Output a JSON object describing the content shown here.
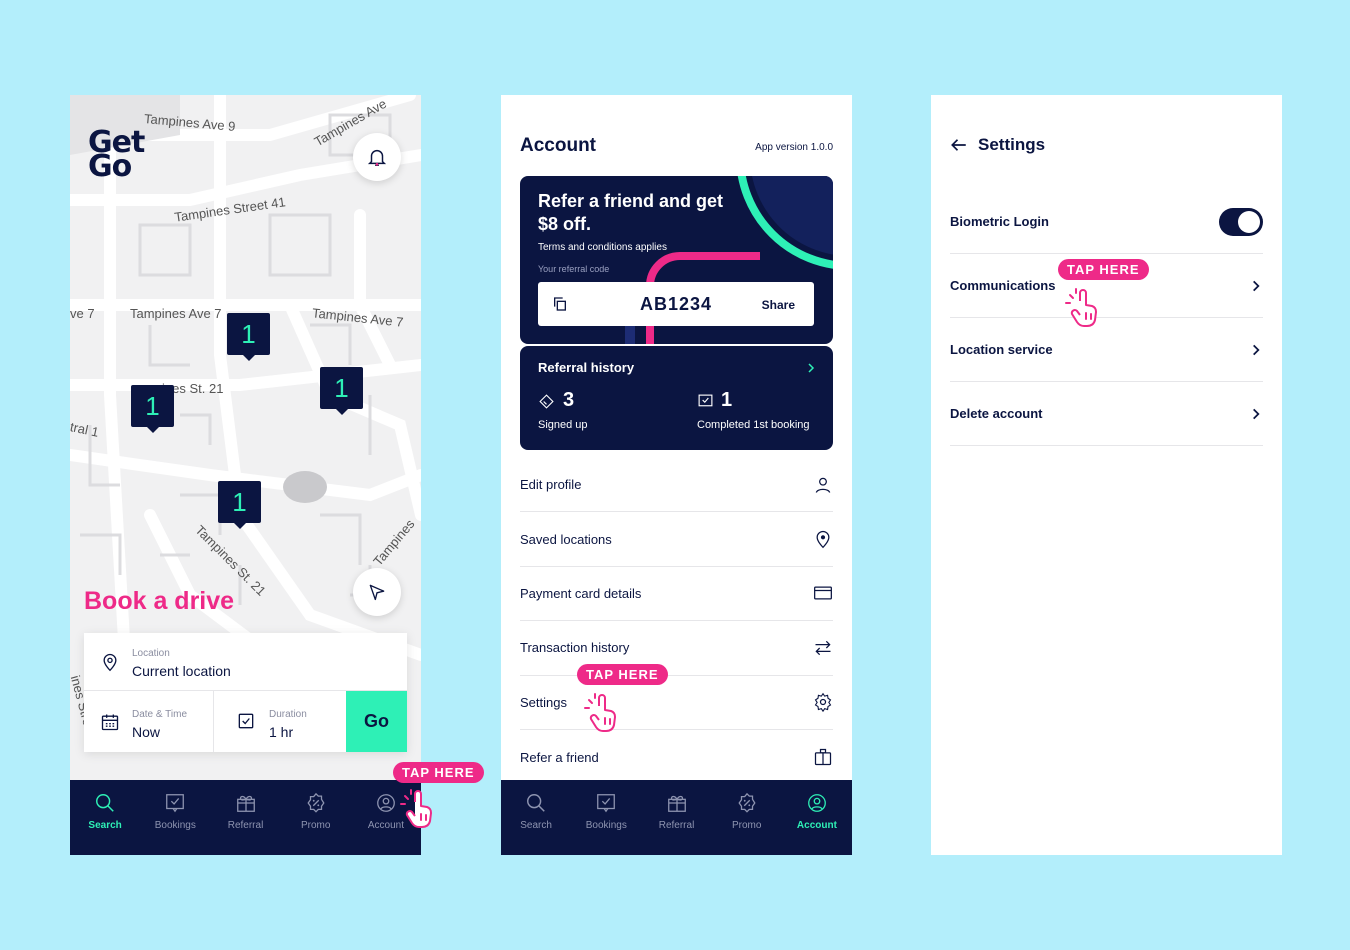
{
  "colors": {
    "navy": "#0b1541",
    "mint": "#2ef0b6",
    "pink": "#ee2a88",
    "background": "#b3eefb"
  },
  "tap_hint": "TAP HERE",
  "nav": [
    {
      "label": "Search",
      "icon": "search-icon"
    },
    {
      "label": "Bookings",
      "icon": "bookings-icon"
    },
    {
      "label": "Referral",
      "icon": "gift-icon"
    },
    {
      "label": "Promo",
      "icon": "promo-icon"
    },
    {
      "label": "Account",
      "icon": "account-icon"
    }
  ],
  "screen1": {
    "logo_top": "Get",
    "logo_bottom": "Go",
    "streets": [
      "Tampines Ave 9",
      "Tampines Ave",
      "Tampines Street 41",
      "ve 7",
      "Tampines Ave 7",
      "Tampines Ave 7",
      "ines St. 21",
      "tral 1",
      "Tampines St. 21",
      "Tampines",
      "ines Stre"
    ],
    "markers": [
      "1",
      "1",
      "1",
      "1"
    ],
    "title": "Book a drive",
    "location_label": "Location",
    "location_value": "Current location",
    "datetime_label": "Date & Time",
    "datetime_value": "Now",
    "duration_label": "Duration",
    "duration_value": "1 hr",
    "go_label": "Go",
    "active_tab": "Search"
  },
  "screen2": {
    "title": "Account",
    "app_version": "App version 1.0.0",
    "refer": {
      "title": "Refer a friend and get $8 off.",
      "terms": "Terms and conditions applies",
      "code_label": "Your referral code",
      "code": "AB1234",
      "share": "Share"
    },
    "history": {
      "title": "Referral history",
      "signed_up_count": "3",
      "signed_up_label": "Signed up",
      "completed_count": "1",
      "completed_label": "Completed 1st booking"
    },
    "menu": [
      {
        "label": "Edit profile",
        "icon": "person-icon"
      },
      {
        "label": "Saved locations",
        "icon": "pin-icon"
      },
      {
        "label": "Payment card details",
        "icon": "card-icon"
      },
      {
        "label": "Transaction history",
        "icon": "swap-icon"
      },
      {
        "label": "Settings",
        "icon": "gear-icon"
      },
      {
        "label": "Refer a friend",
        "icon": "gift-icon"
      }
    ],
    "active_tab": "Account"
  },
  "screen3": {
    "title": "Settings",
    "rows": [
      {
        "label": "Biometric Login",
        "control": "toggle",
        "on": true
      },
      {
        "label": "Communications",
        "control": "chevron"
      },
      {
        "label": "Location service",
        "control": "chevron"
      },
      {
        "label": "Delete account",
        "control": "chevron"
      }
    ]
  }
}
